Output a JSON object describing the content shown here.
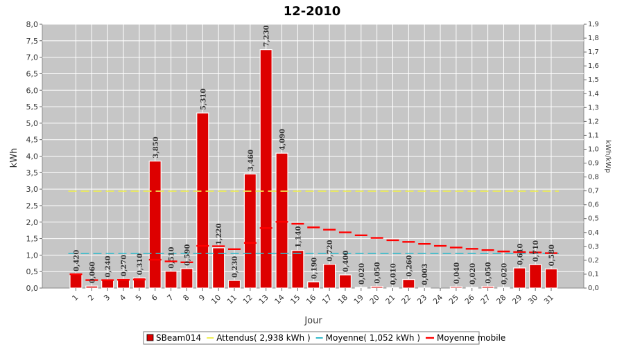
{
  "chart_data": {
    "type": "bar",
    "title": "12-2010",
    "xlabel": "Jour",
    "ylabel": "kWh",
    "y2label": "kWh/kWp",
    "ylim": [
      0,
      8
    ],
    "y2lim": [
      0,
      1.9
    ],
    "yticks": [
      "0,0",
      "0,5",
      "1,0",
      "1,5",
      "2,0",
      "2,5",
      "3,0",
      "3,5",
      "4,0",
      "4,5",
      "5,0",
      "5,5",
      "6,0",
      "6,5",
      "7,0",
      "7,5",
      "8,0"
    ],
    "y2ticks": [
      "0,0",
      "0,1",
      "0,2",
      "0,3",
      "0,4",
      "0,5",
      "0,6",
      "0,7",
      "0,8",
      "0,9",
      "1,0",
      "1,1",
      "1,2",
      "1,3",
      "1,4",
      "1,5",
      "1,6",
      "1,7",
      "1,8",
      "1,9"
    ],
    "categories": [
      "1",
      "2",
      "3",
      "4",
      "5",
      "6",
      "7",
      "8",
      "9",
      "10",
      "11",
      "12",
      "13",
      "14",
      "15",
      "16",
      "17",
      "18",
      "19",
      "20",
      "21",
      "22",
      "23",
      "24",
      "25",
      "26",
      "27",
      "28",
      "29",
      "30",
      "31"
    ],
    "grid": true,
    "legend_position": "bottom",
    "series": [
      {
        "name": "SBeam014",
        "kind": "bar",
        "color": "#dd0000",
        "values": [
          0.42,
          0.06,
          0.24,
          0.27,
          0.31,
          3.85,
          0.51,
          0.59,
          5.31,
          1.22,
          0.23,
          3.46,
          7.23,
          4.09,
          1.14,
          0.19,
          0.72,
          0.4,
          0.02,
          0.05,
          0.01,
          0.26,
          0.003,
          0.0,
          0.04,
          0.02,
          0.05,
          0.02,
          0.61,
          0.71,
          0.58
        ],
        "labels": [
          "0,420",
          "0,060",
          "0,240",
          "0,270",
          "0,310",
          "3,850",
          "0,510",
          "0,590",
          "5,310",
          "1,220",
          "0,230",
          "3,460",
          "7,230",
          "4,090",
          "1,140",
          "0,190",
          "0,720",
          "0,400",
          "0,020",
          "0,050",
          "0,010",
          "0,260",
          "0,003",
          "",
          "0,040",
          "0,020",
          "0,050",
          "0,020",
          "0,610",
          "0,710",
          "0,580"
        ]
      },
      {
        "name": "Attendus( 2,938 kWh )",
        "kind": "dashed-line",
        "color": "#eeee55",
        "value": 2.938
      },
      {
        "name": "Moyenne( 1,052 kWh )",
        "kind": "dashed-line",
        "color": "#33bbcc",
        "value": 1.052
      },
      {
        "name": "Moyenne mobile",
        "kind": "step-dash",
        "color": "#ff0000",
        "values": [
          0.42,
          0.24,
          0.24,
          0.25,
          0.26,
          0.86,
          0.81,
          0.78,
          1.28,
          1.27,
          1.18,
          1.37,
          1.82,
          2.01,
          1.95,
          1.84,
          1.77,
          1.69,
          1.6,
          1.52,
          1.45,
          1.4,
          1.34,
          1.28,
          1.23,
          1.19,
          1.15,
          1.11,
          1.09,
          1.08,
          1.06
        ]
      }
    ]
  }
}
